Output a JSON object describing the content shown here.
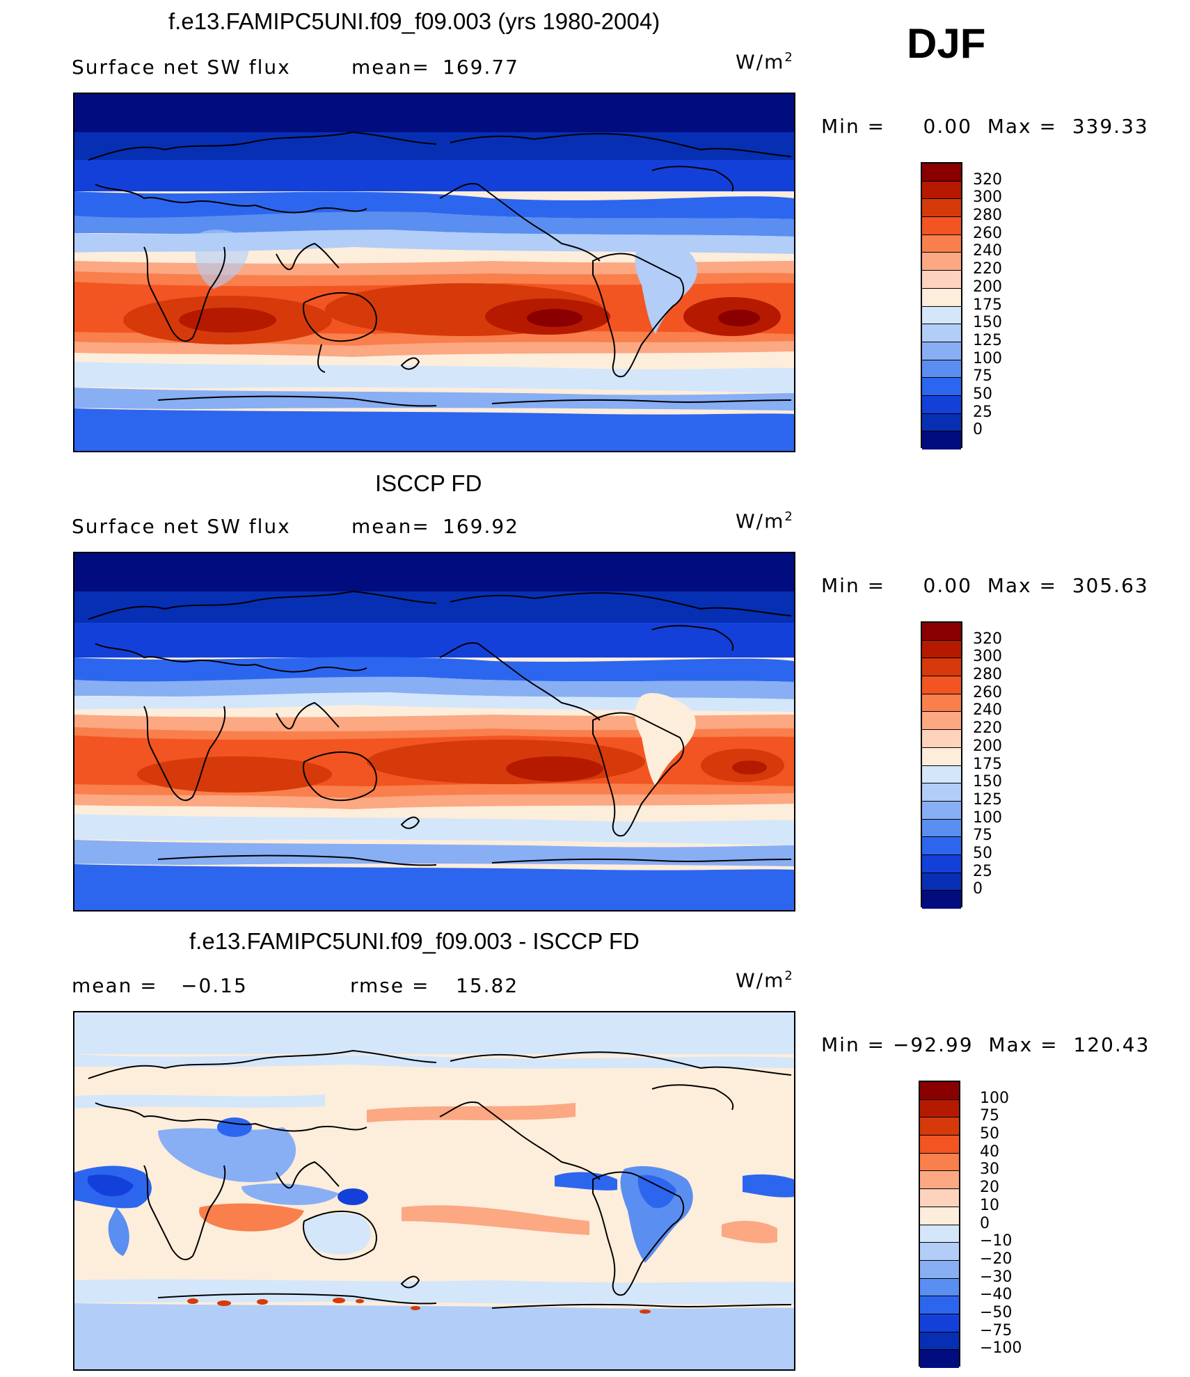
{
  "season": "DJF",
  "panels": [
    {
      "title": "f.e13.FAMIPC5UNI.f09_f09.003 (yrs 1980-2004)",
      "left_label": "Surface net SW flux",
      "stat_label": "mean=",
      "stat_value": "169.77",
      "units_base": "W/m",
      "units_exp": "2",
      "min_max": "Min =     0.00  Max =  339.33",
      "colorbar": {
        "labels": [
          "320",
          "300",
          "280",
          "260",
          "240",
          "220",
          "200",
          "175",
          "150",
          "125",
          "100",
          "75",
          "50",
          "25",
          "0"
        ],
        "colors": [
          "#8a0000",
          "#b51a00",
          "#d63a0a",
          "#f25522",
          "#f97f4c",
          "#fba883",
          "#fdd3bd",
          "#fdeddb",
          "#d4e6fa",
          "#b1cdf8",
          "#88aef4",
          "#5a8ef0",
          "#2d66ee",
          "#1440da",
          "#062fb4",
          "#010c7e"
        ]
      }
    },
    {
      "title": "ISCCP FD",
      "left_label": "Surface net SW flux",
      "stat_label": "mean=",
      "stat_value": "169.92",
      "units_base": "W/m",
      "units_exp": "2",
      "min_max": "Min =     0.00  Max =  305.63",
      "colorbar": {
        "labels": [
          "320",
          "300",
          "280",
          "260",
          "240",
          "220",
          "200",
          "175",
          "150",
          "125",
          "100",
          "75",
          "50",
          "25",
          "0"
        ],
        "colors": [
          "#8a0000",
          "#b51a00",
          "#d63a0a",
          "#f25522",
          "#f97f4c",
          "#fba883",
          "#fdd3bd",
          "#fdeddb",
          "#d4e6fa",
          "#b1cdf8",
          "#88aef4",
          "#5a8ef0",
          "#2d66ee",
          "#1440da",
          "#062fb4",
          "#010c7e"
        ]
      }
    },
    {
      "title": "f.e13.FAMIPC5UNI.f09_f09.003 - ISCCP FD",
      "left_label": "mean =",
      "left_value": "−0.15",
      "stat_label": "rmse =",
      "stat_value": "15.82",
      "units_base": "W/m",
      "units_exp": "2",
      "min_max": "Min = −92.99  Max =  120.43",
      "colorbar": {
        "labels": [
          "100",
          "75",
          "50",
          "40",
          "30",
          "20",
          "10",
          "0",
          "−10",
          "−20",
          "−30",
          "−40",
          "−50",
          "−75",
          "−100"
        ],
        "colors": [
          "#8a0000",
          "#b51a00",
          "#d63a0a",
          "#f25522",
          "#f97f4c",
          "#fba883",
          "#fdd3bd",
          "#fdeddb",
          "#d4e6fa",
          "#b1cdf8",
          "#88aef4",
          "#5a8ef0",
          "#2d66ee",
          "#1440da",
          "#062fb4",
          "#010c7e"
        ]
      }
    }
  ]
}
